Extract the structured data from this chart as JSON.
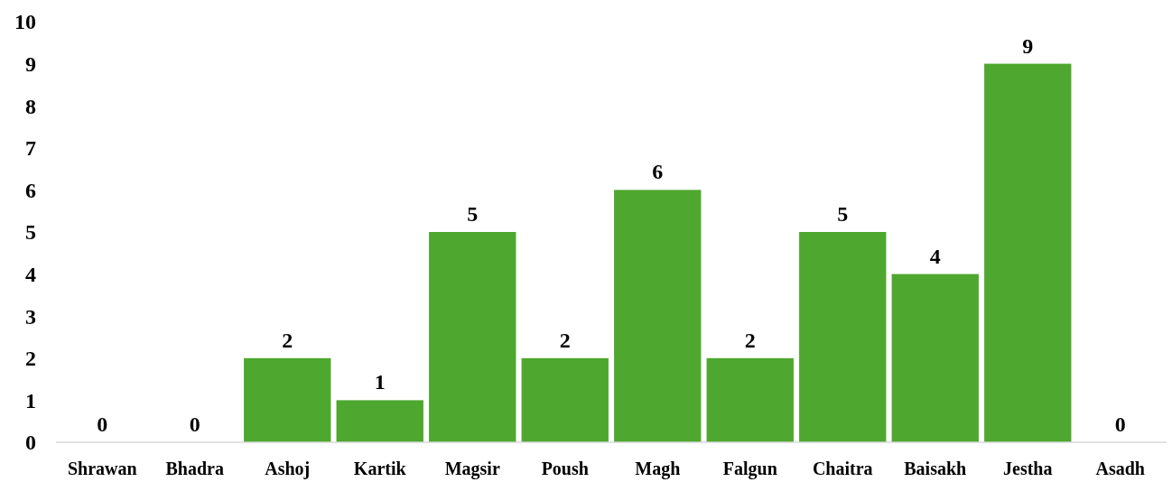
{
  "chart_data": {
    "type": "bar",
    "categories": [
      "Shrawan",
      "Bhadra",
      "Ashoj",
      "Kartik",
      "Magsir",
      "Poush",
      "Magh",
      "Falgun",
      "Chaitra",
      "Baisakh",
      "Jestha",
      "Asadh"
    ],
    "values": [
      0,
      0,
      2,
      1,
      5,
      2,
      6,
      2,
      5,
      4,
      9,
      0
    ],
    "color": "#4ea72e",
    "ylim": [
      0,
      10
    ],
    "yticks": [
      0,
      1,
      2,
      3,
      4,
      5,
      6,
      7,
      8,
      9,
      10
    ],
    "grid": false,
    "data_labels": true
  }
}
